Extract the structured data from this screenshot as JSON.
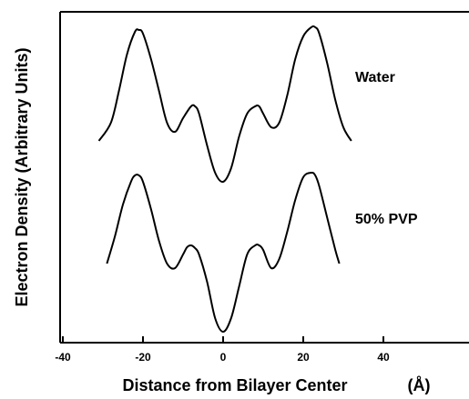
{
  "chart_data": {
    "type": "line",
    "xlabel": "Distance from Bilayer Center",
    "xlabel_unit": "(Å)",
    "ylabel": "Electron Density (Arbitrary Units)",
    "xlim": [
      -40,
      60
    ],
    "xticks": [
      -40,
      -20,
      0,
      20,
      40
    ],
    "y_ticks_shown": false,
    "grid": false,
    "legend": "none (series labeled inline at right)",
    "series": [
      {
        "name": "Water",
        "x": [
          -31,
          -28,
          -26,
          -24,
          -22,
          -21,
          -20,
          -18,
          -16,
          -14,
          -12,
          -10,
          -8,
          -7,
          -6,
          -4,
          -2,
          0,
          2,
          4,
          6,
          8,
          9,
          10,
          12,
          14,
          16,
          18,
          20,
          22,
          23,
          24,
          26,
          28,
          30,
          32
        ],
        "y": [
          0.0,
          0.2,
          0.55,
          0.95,
          1.2,
          1.22,
          1.18,
          0.9,
          0.55,
          0.2,
          0.1,
          0.25,
          0.38,
          0.38,
          0.3,
          -0.05,
          -0.35,
          -0.45,
          -0.3,
          0.05,
          0.3,
          0.38,
          0.38,
          0.3,
          0.15,
          0.2,
          0.5,
          0.9,
          1.15,
          1.25,
          1.25,
          1.18,
          0.85,
          0.45,
          0.15,
          0.0
        ]
      },
      {
        "name": "50% PVP",
        "x": [
          -29,
          -27,
          -25,
          -23,
          -22,
          -21,
          -20,
          -18,
          -16,
          -14,
          -12,
          -10,
          -9,
          -8,
          -7,
          -6,
          -4,
          -2,
          0,
          2,
          4,
          6,
          8,
          9,
          10,
          12,
          14,
          16,
          18,
          20,
          22,
          23,
          24,
          26,
          28,
          29
        ],
        "y": [
          0.15,
          0.45,
          0.8,
          1.05,
          1.12,
          1.12,
          1.05,
          0.75,
          0.4,
          0.15,
          0.1,
          0.25,
          0.33,
          0.35,
          0.32,
          0.25,
          -0.05,
          -0.45,
          -0.6,
          -0.45,
          -0.1,
          0.25,
          0.35,
          0.35,
          0.3,
          0.1,
          0.2,
          0.5,
          0.85,
          1.1,
          1.15,
          1.12,
          1.0,
          0.65,
          0.3,
          0.15
        ]
      }
    ]
  }
}
